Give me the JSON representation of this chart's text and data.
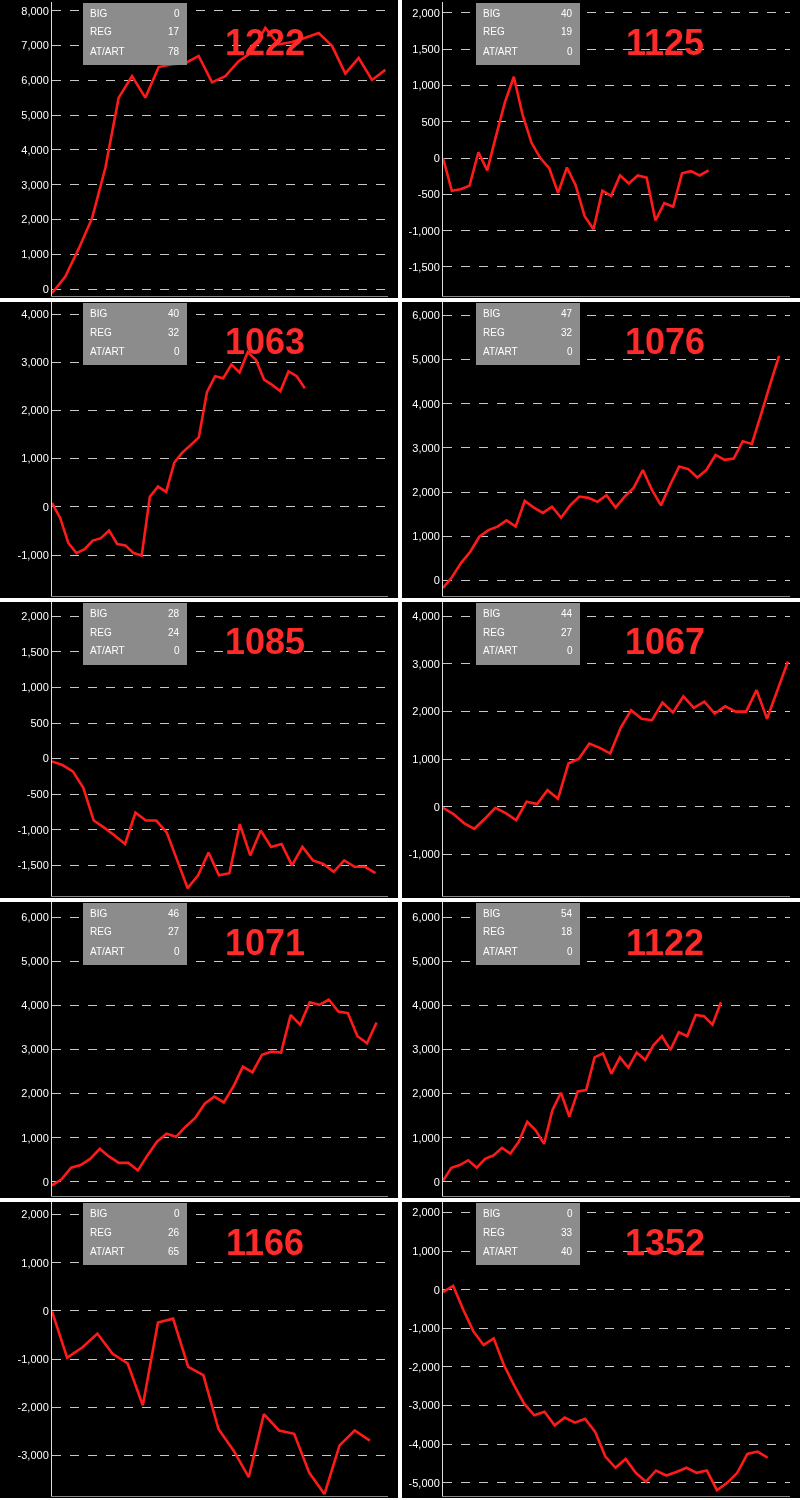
{
  "chart_data": [
    {
      "type": "line",
      "title": "1222",
      "annotations": [
        "BIG",
        "0",
        "REG",
        "17",
        "AT/ART",
        "78"
      ],
      "categories": [
        null,
        null,
        null,
        null,
        null,
        null,
        null,
        null,
        null,
        null,
        null,
        null,
        null,
        null,
        null,
        null,
        null,
        null,
        null,
        null,
        null,
        null,
        null,
        null,
        null,
        null
      ],
      "series": [
        {
          "color": "#ff1a1a",
          "values": [
            -120,
            360,
            1160,
            2030,
            3480,
            5500,
            6120,
            5500,
            6380,
            6460,
            6490,
            6700,
            5940,
            6120,
            6550,
            6810,
            7510,
            7030,
            7100,
            7220,
            7360,
            6990,
            6190,
            6640,
            6010,
            6300
          ]
        }
      ],
      "ylim": [
        -200,
        8250
      ],
      "yticks": [
        0,
        {
          "value": 1000,
          "label": "1,000"
        },
        {
          "value": 2000,
          "label": "2,000"
        },
        {
          "value": 3000,
          "label": "3,000"
        },
        {
          "value": 4000,
          "label": "4,000"
        },
        {
          "value": 5000,
          "label": "5,000"
        },
        {
          "value": 6000,
          "label": "6,000"
        },
        {
          "value": 7000,
          "label": "7,000"
        },
        {
          "value": 8000,
          "label": "8,000"
        }
      ],
      "grid": "y",
      "tick_labels": "y",
      "line_style": "solid"
    },
    {
      "type": "line",
      "title": "1125",
      "annotations": [
        "BIG",
        "40",
        "REG",
        "19",
        "AT/ART",
        "0"
      ],
      "categories": [
        null,
        null,
        null,
        null,
        null,
        null,
        null,
        null,
        null,
        null,
        null,
        null,
        null,
        null,
        null,
        null,
        null,
        null,
        null,
        null,
        null,
        null,
        null,
        null,
        null,
        null,
        null,
        null,
        null,
        null,
        null,
        null,
        null,
        null,
        null,
        null,
        null,
        null,
        null,
        null
      ],
      "series": [
        {
          "color": "#ff1a1a",
          "values": [
            0,
            -450,
            -430,
            -380,
            80,
            -170,
            310,
            770,
            1120,
            590,
            210,
            0,
            -140,
            -480,
            -130,
            -380,
            -800,
            -980,
            -450,
            -520,
            -240,
            -350,
            -240,
            -270,
            -860,
            -620,
            -670,
            -210,
            -180,
            -240,
            -170,
            null,
            null,
            null,
            null,
            null,
            null,
            null,
            null,
            null
          ]
        }
      ],
      "ylim": [
        -1900,
        2150
      ],
      "yticks": [
        {
          "value": -1500,
          "label": "-1,500"
        },
        {
          "value": -1000,
          "label": "-1,000"
        },
        -500,
        0,
        500,
        {
          "value": 1000,
          "label": "1,000"
        },
        {
          "value": 1500,
          "label": "1,500"
        },
        {
          "value": 2000,
          "label": "2,000"
        }
      ],
      "grid": "y",
      "tick_labels": "y",
      "line_style": "solid"
    },
    {
      "type": "line",
      "title": "1063",
      "annotations": [
        "BIG",
        "40",
        "REG",
        "32",
        "AT/ART",
        "0"
      ],
      "categories": [
        null,
        null,
        null,
        null,
        null,
        null,
        null,
        null,
        null,
        null,
        null,
        null,
        null,
        null,
        null,
        null,
        null,
        null,
        null,
        null,
        null,
        null,
        null,
        null,
        null,
        null,
        null,
        null,
        null,
        null,
        null,
        null,
        null,
        null,
        null,
        null,
        null,
        null,
        null,
        null,
        null,
        null
      ],
      "series": [
        {
          "color": "#ff1a1a",
          "values": [
            80,
            -230,
            -750,
            -960,
            -880,
            -700,
            -650,
            -490,
            -770,
            -800,
            -960,
            -1010,
            210,
            420,
            310,
            920,
            1130,
            1280,
            1440,
            2380,
            2710,
            2670,
            2950,
            2790,
            3210,
            3050,
            2640,
            2530,
            2400,
            2810,
            2710,
            2460,
            null,
            null,
            null,
            null,
            null,
            null,
            null,
            null,
            null,
            null
          ]
        }
      ],
      "ylim": [
        -1850,
        4250
      ],
      "yticks": [
        {
          "value": -1000,
          "label": "-1,000"
        },
        0,
        {
          "value": 1000,
          "label": "1,000"
        },
        {
          "value": 2000,
          "label": "2,000"
        },
        {
          "value": 3000,
          "label": "3,000"
        },
        {
          "value": 4000,
          "label": "4,000"
        }
      ],
      "grid": "y",
      "tick_labels": "y",
      "line_style": "solid"
    },
    {
      "type": "line",
      "title": "1076",
      "annotations": [
        "BIG",
        "47",
        "REG",
        "32",
        "AT/ART",
        "0"
      ],
      "categories": [
        null,
        null,
        null,
        null,
        null,
        null,
        null,
        null,
        null,
        null,
        null,
        null,
        null,
        null,
        null,
        null,
        null,
        null,
        null,
        null,
        null,
        null,
        null,
        null,
        null,
        null,
        null,
        null,
        null,
        null,
        null,
        null,
        null,
        null,
        null,
        null,
        null,
        null,
        null
      ],
      "series": [
        {
          "color": "#ff1a1a",
          "values": [
            -170,
            80,
            400,
            650,
            990,
            1140,
            1220,
            1360,
            1220,
            1800,
            1650,
            1530,
            1670,
            1420,
            1700,
            1900,
            1870,
            1780,
            1930,
            1650,
            1900,
            2100,
            2500,
            2050,
            1700,
            2160,
            2580,
            2520,
            2330,
            2500,
            2840,
            2730,
            2760,
            3150,
            3090,
            3750,
            4430,
            5080,
            null
          ]
        }
      ],
      "ylim": [
        -350,
        6300
      ],
      "yticks": [
        0,
        {
          "value": 1000,
          "label": "1,000"
        },
        {
          "value": 2000,
          "label": "2,000"
        },
        {
          "value": 3000,
          "label": "3,000"
        },
        {
          "value": 4000,
          "label": "4,000"
        },
        {
          "value": 5000,
          "label": "5,000"
        },
        {
          "value": 6000,
          "label": "6,000"
        }
      ],
      "grid": "y",
      "tick_labels": "y",
      "line_style": "solid"
    },
    {
      "type": "line",
      "title": "1085",
      "annotations": [
        "BIG",
        "28",
        "REG",
        "24",
        "AT/ART",
        "0"
      ],
      "categories": [
        null,
        null,
        null,
        null,
        null,
        null,
        null,
        null,
        null,
        null,
        null,
        null,
        null,
        null,
        null,
        null,
        null,
        null,
        null,
        null,
        null,
        null,
        null,
        null,
        null,
        null,
        null,
        null,
        null,
        null,
        null,
        null,
        null
      ],
      "series": [
        {
          "color": "#ff1a1a",
          "values": [
            -40,
            -90,
            -180,
            -410,
            -870,
            -970,
            -1080,
            -1200,
            -760,
            -870,
            -870,
            -1040,
            -1430,
            -1820,
            -1640,
            -1320,
            -1640,
            -1610,
            -920,
            -1360,
            -1010,
            -1240,
            -1200,
            -1500,
            -1240,
            -1430,
            -1480,
            -1590,
            -1430,
            -1520,
            -1520,
            -1610,
            null
          ]
        }
      ],
      "ylim": [
        -1930,
        2200
      ],
      "yticks": [
        {
          "value": -1500,
          "label": "-1,500"
        },
        {
          "value": -1000,
          "label": "-1,000"
        },
        -500,
        0,
        500,
        {
          "value": 1000,
          "label": "1,000"
        },
        {
          "value": 1500,
          "label": "1,500"
        },
        {
          "value": 2000,
          "label": "2,000"
        }
      ],
      "grid": "y",
      "tick_labels": "y",
      "line_style": "solid"
    },
    {
      "type": "line",
      "title": "1067",
      "annotations": [
        "BIG",
        "44",
        "REG",
        "27",
        "AT/ART",
        "0"
      ],
      "categories": [
        null,
        null,
        null,
        null,
        null,
        null,
        null,
        null,
        null,
        null,
        null,
        null,
        null,
        null,
        null,
        null,
        null,
        null,
        null,
        null,
        null,
        null,
        null,
        null,
        null,
        null,
        null,
        null,
        null,
        null,
        null,
        null,
        null,
        null
      ],
      "series": [
        {
          "color": "#ff1a1a",
          "values": [
            -20,
            -150,
            -340,
            -460,
            -250,
            -20,
            -130,
            -280,
            110,
            60,
            350,
            170,
            910,
            1010,
            1330,
            1240,
            1120,
            1660,
            2030,
            1850,
            1820,
            2190,
            1980,
            2320,
            2080,
            2210,
            1960,
            2110,
            2000,
            2000,
            2450,
            1850,
            2450,
            3050
          ]
        }
      ],
      "ylim": [
        -1870,
        4300
      ],
      "yticks": [
        {
          "value": -1000,
          "label": "-1,000"
        },
        0,
        {
          "value": 1000,
          "label": "1,000"
        },
        {
          "value": 2000,
          "label": "2,000"
        },
        {
          "value": 3000,
          "label": "3,000"
        },
        {
          "value": 4000,
          "label": "4,000"
        }
      ],
      "grid": "y",
      "tick_labels": "y",
      "line_style": "solid"
    },
    {
      "type": "line",
      "title": "1071",
      "annotations": [
        "BIG",
        "46",
        "REG",
        "27",
        "AT/ART",
        "0"
      ],
      "categories": [
        null,
        null,
        null,
        null,
        null,
        null,
        null,
        null,
        null,
        null,
        null,
        null,
        null,
        null,
        null,
        null,
        null,
        null,
        null,
        null,
        null,
        null,
        null,
        null,
        null,
        null,
        null,
        null,
        null,
        null,
        null,
        null,
        null,
        null,
        null,
        null
      ],
      "series": [
        {
          "color": "#ff1a1a",
          "values": [
            -80,
            60,
            320,
            380,
            520,
            750,
            570,
            430,
            430,
            260,
            600,
            910,
            1090,
            1020,
            1250,
            1450,
            1770,
            1930,
            1800,
            2160,
            2610,
            2480,
            2880,
            2950,
            2930,
            3780,
            3560,
            4070,
            4010,
            4130,
            3860,
            3820,
            3300,
            3140,
            3610,
            null
          ]
        }
      ],
      "ylim": [
        -320,
        6340
      ],
      "yticks": [
        0,
        {
          "value": 1000,
          "label": "1,000"
        },
        {
          "value": 2000,
          "label": "2,000"
        },
        {
          "value": 3000,
          "label": "3,000"
        },
        {
          "value": 4000,
          "label": "4,000"
        },
        {
          "value": 5000,
          "label": "5,000"
        },
        {
          "value": 6000,
          "label": "6,000"
        }
      ],
      "grid": "y",
      "tick_labels": "y",
      "line_style": "solid"
    },
    {
      "type": "line",
      "title": "1122",
      "annotations": [
        "BIG",
        "54",
        "REG",
        "18",
        "AT/ART",
        "0"
      ],
      "categories": [
        null,
        null,
        null,
        null,
        null,
        null,
        null,
        null,
        null,
        null,
        null,
        null,
        null,
        null,
        null,
        null,
        null,
        null,
        null,
        null,
        null,
        null,
        null,
        null,
        null,
        null,
        null,
        null,
        null,
        null,
        null,
        null,
        null,
        null,
        null,
        null,
        null,
        null,
        null,
        null,
        null,
        null
      ],
      "series": [
        {
          "color": "#ff1a1a",
          "values": [
            30,
            320,
            380,
            490,
            320,
            520,
            600,
            770,
            640,
            910,
            1360,
            1170,
            860,
            1630,
            2020,
            1480,
            2050,
            2080,
            2820,
            2910,
            2450,
            2820,
            2590,
            2930,
            2760,
            3100,
            3300,
            2990,
            3390,
            3300,
            3780,
            3750,
            3560,
            4070,
            null,
            null,
            null,
            null,
            null,
            null,
            null,
            null
          ]
        }
      ],
      "ylim": [
        -320,
        6340
      ],
      "yticks": [
        0,
        {
          "value": 1000,
          "label": "1,000"
        },
        {
          "value": 2000,
          "label": "2,000"
        },
        {
          "value": 3000,
          "label": "3,000"
        },
        {
          "value": 4000,
          "label": "4,000"
        },
        {
          "value": 5000,
          "label": "5,000"
        },
        {
          "value": 6000,
          "label": "6,000"
        }
      ],
      "grid": "y",
      "tick_labels": "y",
      "line_style": "solid"
    },
    {
      "type": "line",
      "title": "1166",
      "annotations": [
        "BIG",
        "0",
        "REG",
        "26",
        "AT/ART",
        "65"
      ],
      "categories": [
        null,
        null,
        null,
        null,
        null,
        null,
        null,
        null,
        null,
        null,
        null,
        null,
        null,
        null,
        null,
        null,
        null,
        null,
        null,
        null,
        null,
        null,
        null
      ],
      "series": [
        {
          "color": "#ff1a1a",
          "values": [
            -10,
            -970,
            -760,
            -470,
            -890,
            -1090,
            -1960,
            -240,
            -160,
            -1160,
            -1330,
            -2450,
            -2900,
            -3450,
            -2140,
            -2480,
            -2550,
            -3360,
            -3800,
            -2790,
            -2480,
            -2690,
            null
          ]
        }
      ],
      "ylim": [
        -3840,
        2260
      ],
      "yticks": [
        {
          "value": -3000,
          "label": "-3,000"
        },
        {
          "value": -2000,
          "label": "-2,000"
        },
        {
          "value": -1000,
          "label": "-1,000"
        },
        0,
        {
          "value": 1000,
          "label": "1,000"
        },
        {
          "value": 2000,
          "label": "2,000"
        }
      ],
      "grid": "y",
      "tick_labels": "y",
      "line_style": "solid"
    },
    {
      "type": "line",
      "title": "1352",
      "annotations": [
        "BIG",
        "0",
        "REG",
        "33",
        "AT/ART",
        "40"
      ],
      "categories": [
        null,
        null,
        null,
        null,
        null,
        null,
        null,
        null,
        null,
        null,
        null,
        null,
        null,
        null,
        null,
        null,
        null,
        null,
        null,
        null,
        null,
        null,
        null,
        null,
        null,
        null,
        null,
        null,
        null,
        null,
        null,
        null,
        null,
        null,
        null
      ],
      "series": [
        {
          "color": "#ff1a1a",
          "values": [
            -60,
            100,
            -520,
            -1080,
            -1430,
            -1260,
            -1950,
            -2470,
            -2950,
            -3250,
            -3160,
            -3510,
            -3310,
            -3440,
            -3340,
            -3680,
            -4320,
            -4610,
            -4380,
            -4740,
            -4970,
            -4680,
            -4810,
            -4720,
            -4610,
            -4740,
            -4680,
            -5190,
            -5000,
            -4740,
            -4250,
            -4190,
            -4350,
            null,
            null
          ]
        }
      ],
      "ylim": [
        -5340,
        2270
      ],
      "yticks": [
        {
          "value": -5000,
          "label": "-5,000"
        },
        {
          "value": -4000,
          "label": "-4,000"
        },
        {
          "value": -3000,
          "label": "-3,000"
        },
        {
          "value": -2000,
          "label": "-2,000"
        },
        {
          "value": -1000,
          "label": "-1,000"
        },
        0,
        {
          "value": 1000,
          "label": "1,000"
        },
        {
          "value": 2000,
          "label": "2,000"
        }
      ],
      "grid": "y",
      "tick_labels": "y",
      "line_style": "solid"
    }
  ]
}
